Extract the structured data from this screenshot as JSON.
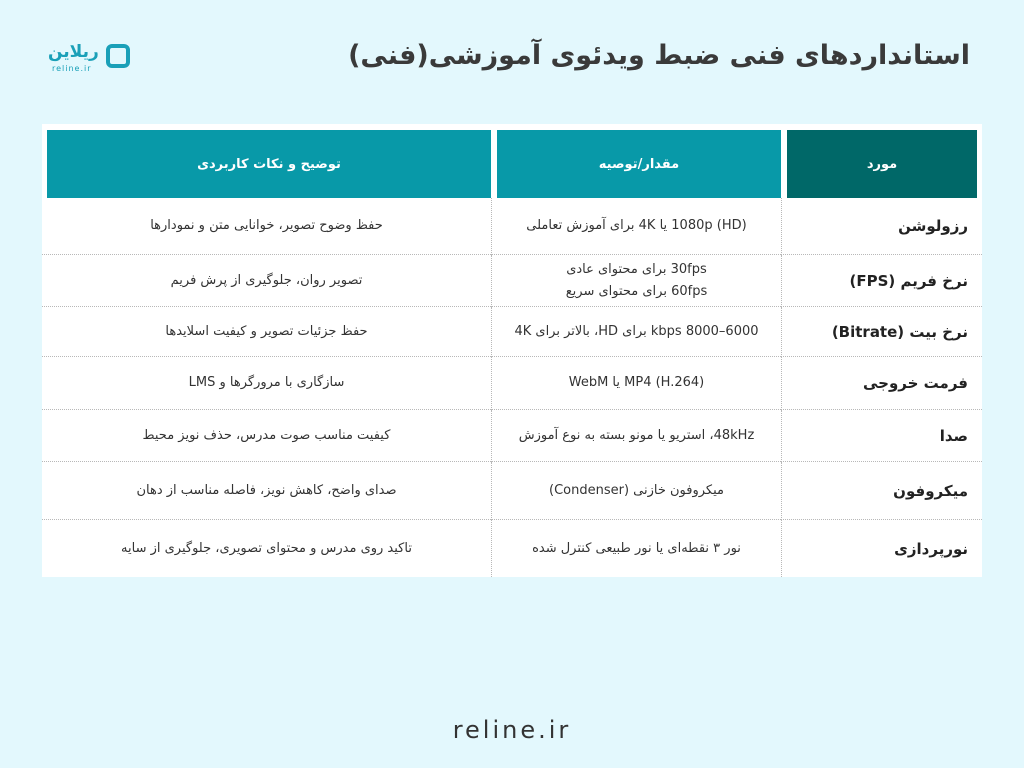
{
  "title": "استانداردهای فنی ضبط ویدئوی آموزشی(فنی)",
  "logo": {
    "word": "ریلاین",
    "sub": "reline.ir"
  },
  "table": {
    "headers": [
      "مورد",
      "مقدار/توصیه",
      "توضیح و نکات کاربردی"
    ],
    "rows": [
      {
        "item": "رزولوشن",
        "value": "(HD) 1080p یا 4K برای آموزش تعاملی",
        "value2": "",
        "note": "حفظ وضوح تصویر، خوانایی متن و نمودارها"
      },
      {
        "item": "نرخ فریم (FPS)",
        "value": "30fps برای محتوای عادی",
        "value2": "60fps برای محتوای سریع",
        "note": "تصویر روان، جلوگیری از پرش فریم"
      },
      {
        "item": "نرخ بیت (Bitrate)",
        "value": "6000–8000 kbps  برای HD، بالاتر برای 4K",
        "value2": "",
        "note": "حفظ جزئیات تصویر و کیفیت اسلایدها"
      },
      {
        "item": "فرمت خروجی",
        "value": "MP4 (H.264) یا WebM",
        "value2": "",
        "note": "سازگاری با مرورگرها و LMS"
      },
      {
        "item": "صدا",
        "value": "48kHz، استریو یا مونو بسته به نوع آموزش",
        "value2": "",
        "note": "کیفیت مناسب صوت مدرس، حذف نویز محیط"
      },
      {
        "item": "میکروفون",
        "value": "میکروفون خازنی (Condenser)",
        "value2": "",
        "note": "صدای واضح، کاهش نویز، فاصله مناسب از دهان"
      },
      {
        "item": "نورپردازی",
        "value": "نور ۳ نقطه‌ای یا نور طبیعی کنترل شده",
        "value2": "",
        "note": "تاکید روی مدرس و محتوای تصویری، جلوگیری از سایه"
      }
    ]
  },
  "footer": "reline.ir",
  "colors": {
    "background": "#e3f8fd",
    "header_dark": "#006868",
    "header_teal": "#0899a8",
    "brand": "#1aa0b8"
  }
}
